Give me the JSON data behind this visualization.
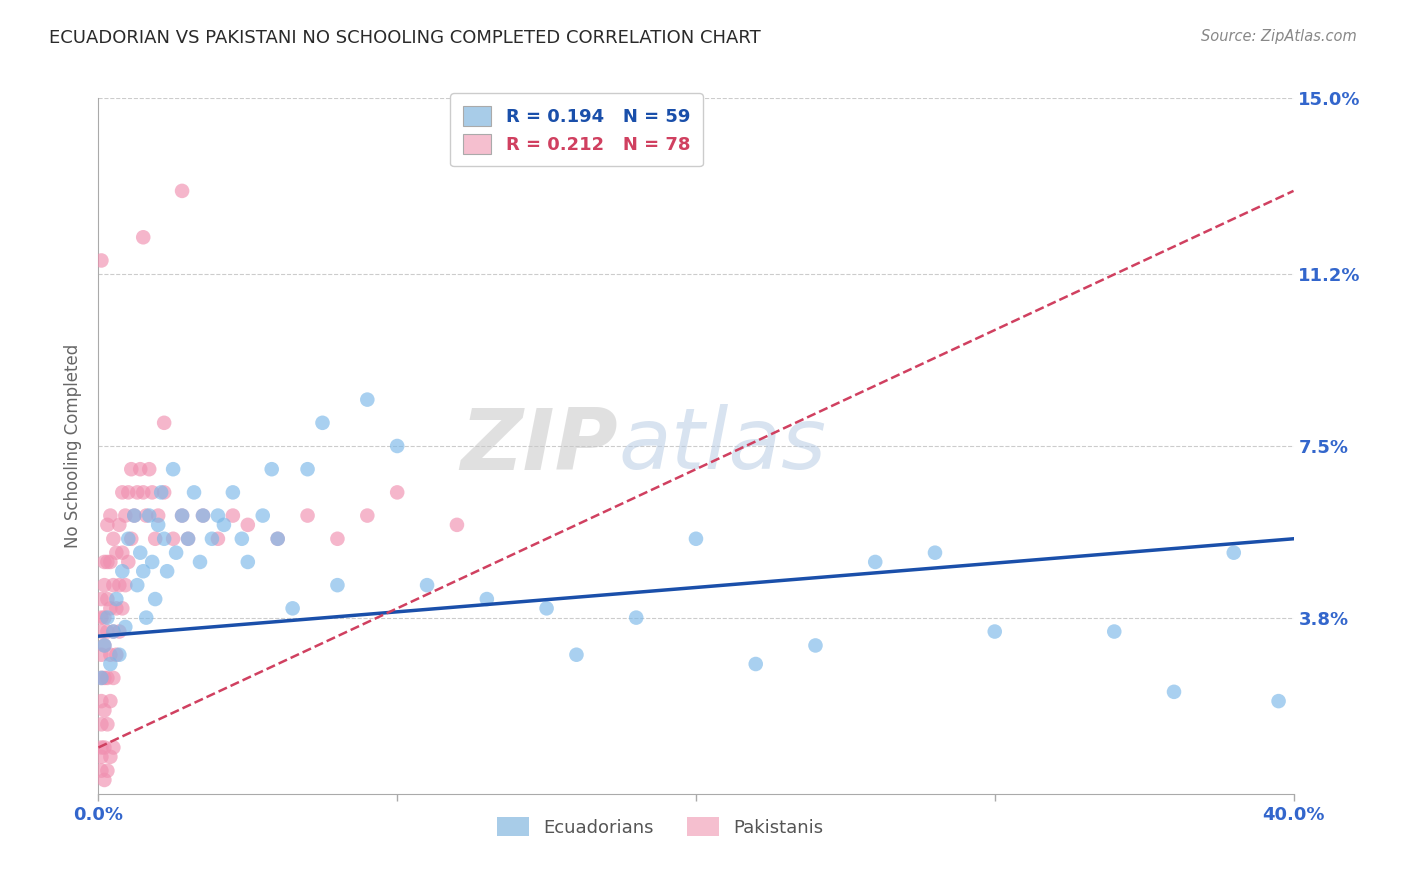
{
  "title": "ECUADORIAN VS PAKISTANI NO SCHOOLING COMPLETED CORRELATION CHART",
  "source": "Source: ZipAtlas.com",
  "ylabel": "No Schooling Completed",
  "xlim": [
    0.0,
    0.4
  ],
  "ylim": [
    0.0,
    0.15
  ],
  "xtick_positions": [
    0.0,
    0.1,
    0.2,
    0.3,
    0.4
  ],
  "xtick_labels": [
    "0.0%",
    "",
    "",
    "",
    "40.0%"
  ],
  "ytick_positions": [
    0.038,
    0.075,
    0.112,
    0.15
  ],
  "ytick_labels": [
    "3.8%",
    "7.5%",
    "11.2%",
    "15.0%"
  ],
  "watermark_zip": "ZIP",
  "watermark_atlas": "atlas",
  "R_label_ecu": "R = 0.194   N = 59",
  "R_label_pak": "R = 0.212   N = 78",
  "legend_labels": [
    "Ecuadorians",
    "Pakistanis"
  ],
  "blue_scatter": "#7bb8e8",
  "pink_scatter": "#f090b0",
  "blue_line": "#1a4faa",
  "pink_line": "#d04060",
  "blue_legend_patch": "#a8cce8",
  "pink_legend_patch": "#f5bfcf",
  "title_color": "#2a2a2a",
  "source_color": "#888888",
  "tick_color": "#3366cc",
  "grid_color": "#cccccc",
  "axis_label_color": "#666666",
  "bg": "#ffffff",
  "ecu_line_start_y": 0.034,
  "ecu_line_end_y": 0.055,
  "pak_line_start_y": 0.01,
  "pak_line_end_y": 0.13,
  "ecu_x": [
    0.001,
    0.002,
    0.003,
    0.004,
    0.005,
    0.006,
    0.007,
    0.008,
    0.009,
    0.01,
    0.012,
    0.013,
    0.014,
    0.015,
    0.016,
    0.017,
    0.018,
    0.019,
    0.02,
    0.021,
    0.022,
    0.023,
    0.025,
    0.026,
    0.028,
    0.03,
    0.032,
    0.034,
    0.035,
    0.038,
    0.04,
    0.042,
    0.045,
    0.048,
    0.05,
    0.055,
    0.058,
    0.06,
    0.065,
    0.07,
    0.075,
    0.08,
    0.09,
    0.1,
    0.11,
    0.13,
    0.16,
    0.2,
    0.24,
    0.28,
    0.15,
    0.18,
    0.22,
    0.26,
    0.3,
    0.34,
    0.36,
    0.38,
    0.395
  ],
  "ecu_y": [
    0.025,
    0.032,
    0.038,
    0.028,
    0.035,
    0.042,
    0.03,
    0.048,
    0.036,
    0.055,
    0.06,
    0.045,
    0.052,
    0.048,
    0.038,
    0.06,
    0.05,
    0.042,
    0.058,
    0.065,
    0.055,
    0.048,
    0.07,
    0.052,
    0.06,
    0.055,
    0.065,
    0.05,
    0.06,
    0.055,
    0.06,
    0.058,
    0.065,
    0.055,
    0.05,
    0.06,
    0.07,
    0.055,
    0.04,
    0.07,
    0.08,
    0.045,
    0.085,
    0.075,
    0.045,
    0.042,
    0.03,
    0.055,
    0.032,
    0.052,
    0.04,
    0.038,
    0.028,
    0.05,
    0.035,
    0.035,
    0.022,
    0.052,
    0.02
  ],
  "pak_x": [
    0.001,
    0.001,
    0.001,
    0.001,
    0.001,
    0.001,
    0.001,
    0.001,
    0.001,
    0.001,
    0.002,
    0.002,
    0.002,
    0.002,
    0.002,
    0.002,
    0.002,
    0.003,
    0.003,
    0.003,
    0.003,
    0.003,
    0.003,
    0.004,
    0.004,
    0.004,
    0.004,
    0.004,
    0.005,
    0.005,
    0.005,
    0.005,
    0.006,
    0.006,
    0.006,
    0.007,
    0.007,
    0.007,
    0.008,
    0.008,
    0.008,
    0.009,
    0.009,
    0.01,
    0.01,
    0.011,
    0.011,
    0.012,
    0.013,
    0.014,
    0.015,
    0.016,
    0.017,
    0.018,
    0.019,
    0.02,
    0.022,
    0.025,
    0.028,
    0.03,
    0.035,
    0.04,
    0.045,
    0.05,
    0.06,
    0.07,
    0.08,
    0.09,
    0.1,
    0.12,
    0.015,
    0.022,
    0.028,
    0.001,
    0.002,
    0.003,
    0.004,
    0.005
  ],
  "pak_y": [
    0.005,
    0.008,
    0.01,
    0.015,
    0.02,
    0.025,
    0.03,
    0.035,
    0.038,
    0.042,
    0.01,
    0.018,
    0.025,
    0.032,
    0.038,
    0.045,
    0.05,
    0.015,
    0.025,
    0.035,
    0.042,
    0.05,
    0.058,
    0.02,
    0.03,
    0.04,
    0.05,
    0.06,
    0.025,
    0.035,
    0.045,
    0.055,
    0.03,
    0.04,
    0.052,
    0.035,
    0.045,
    0.058,
    0.04,
    0.052,
    0.065,
    0.045,
    0.06,
    0.05,
    0.065,
    0.055,
    0.07,
    0.06,
    0.065,
    0.07,
    0.065,
    0.06,
    0.07,
    0.065,
    0.055,
    0.06,
    0.065,
    0.055,
    0.06,
    0.055,
    0.06,
    0.055,
    0.06,
    0.058,
    0.055,
    0.06,
    0.055,
    0.06,
    0.065,
    0.058,
    0.12,
    0.08,
    0.13,
    0.115,
    0.003,
    0.005,
    0.008,
    0.01
  ]
}
